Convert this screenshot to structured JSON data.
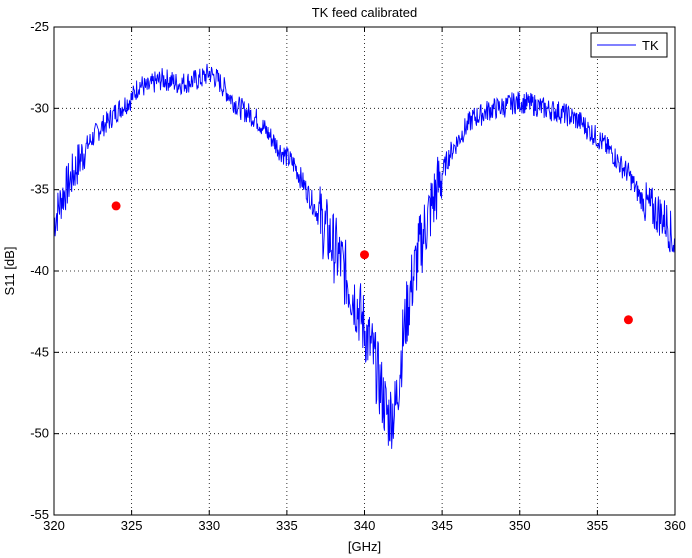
{
  "chart_data": {
    "type": "line",
    "title": "TK feed calibrated",
    "xlabel": "[GHz]",
    "ylabel": "S11 [dB]",
    "xlim": [
      320,
      360
    ],
    "ylim": [
      -55,
      -25
    ],
    "x_ticks": [
      320,
      325,
      330,
      335,
      340,
      345,
      350,
      355,
      360
    ],
    "y_ticks": [
      -25,
      -30,
      -35,
      -40,
      -45,
      -50,
      -55
    ],
    "grid": true,
    "legend": {
      "placement": "top-right",
      "entries": [
        "TK"
      ]
    },
    "series": [
      {
        "name": "TK",
        "color": "#0000ff",
        "x": [
          320.0,
          320.5,
          321.0,
          321.5,
          322.0,
          322.5,
          323.0,
          323.5,
          324.0,
          324.5,
          325.0,
          325.5,
          326.0,
          326.5,
          327.0,
          327.5,
          328.0,
          328.5,
          329.0,
          329.5,
          330.0,
          330.5,
          331.0,
          331.5,
          332.0,
          332.5,
          333.0,
          333.5,
          334.0,
          334.5,
          335.0,
          335.5,
          336.0,
          336.5,
          337.0,
          337.5,
          338.0,
          338.5,
          339.0,
          339.5,
          340.0,
          340.5,
          341.0,
          341.5,
          342.0,
          342.5,
          343.0,
          343.5,
          344.0,
          344.5,
          345.0,
          345.5,
          346.0,
          346.5,
          347.0,
          347.5,
          348.0,
          348.5,
          349.0,
          349.5,
          350.0,
          350.5,
          351.0,
          351.5,
          352.0,
          352.5,
          353.0,
          353.5,
          354.0,
          354.5,
          355.0,
          355.5,
          356.0,
          356.5,
          357.0,
          357.5,
          358.0,
          358.5,
          359.0,
          359.5,
          360.0
        ],
        "y": [
          -37.0,
          -35.5,
          -34.5,
          -33.5,
          -32.5,
          -31.8,
          -31.2,
          -30.8,
          -30.2,
          -29.8,
          -29.4,
          -28.5,
          -28.8,
          -28.4,
          -28.2,
          -28.3,
          -28.5,
          -28.4,
          -28.3,
          -28.2,
          -27.8,
          -28.2,
          -28.8,
          -29.5,
          -30.0,
          -30.3,
          -30.6,
          -31.2,
          -31.8,
          -32.5,
          -33.0,
          -33.5,
          -34.5,
          -35.5,
          -36.5,
          -37.5,
          -38.5,
          -39.5,
          -40.8,
          -42.0,
          -43.5,
          -45.0,
          -47.0,
          -49.0,
          -48.5,
          -44.0,
          -41.0,
          -38.8,
          -37.0,
          -35.5,
          -34.0,
          -32.8,
          -32.0,
          -31.2,
          -30.6,
          -30.4,
          -30.1,
          -30.0,
          -29.9,
          -29.7,
          -29.6,
          -29.7,
          -29.8,
          -30.0,
          -30.1,
          -30.2,
          -30.4,
          -30.6,
          -30.9,
          -31.4,
          -31.8,
          -32.3,
          -32.8,
          -33.5,
          -34.0,
          -35.0,
          -35.8,
          -36.2,
          -36.5,
          -37.0,
          -38.5
        ]
      },
      {
        "type": "scatter",
        "color": "#ff0000",
        "x": [
          324,
          340,
          357
        ],
        "y": [
          -36,
          -39,
          -43
        ]
      }
    ]
  }
}
